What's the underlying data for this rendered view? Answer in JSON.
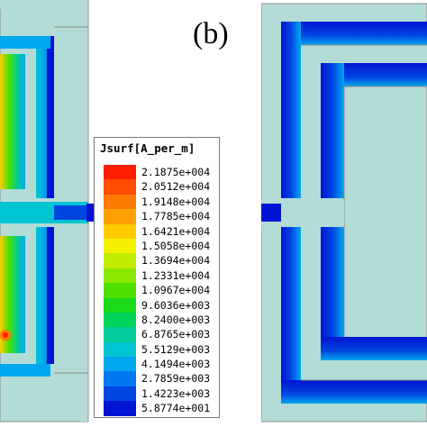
{
  "figure": {
    "panel_label": "(b)",
    "background_color": "#b3dcd6",
    "outline_color": "#8c8c8c"
  },
  "legend": {
    "title": "Jsurf[A_per_m]",
    "entries": [
      {
        "value": "2.1875e+004",
        "color": "#ff1e00"
      },
      {
        "value": "2.0512e+004",
        "color": "#ff4d00"
      },
      {
        "value": "1.9148e+004",
        "color": "#ff7a00"
      },
      {
        "value": "1.7785e+004",
        "color": "#ffa000"
      },
      {
        "value": "1.6421e+004",
        "color": "#ffcc00"
      },
      {
        "value": "1.5058e+004",
        "color": "#f4f000"
      },
      {
        "value": "1.3694e+004",
        "color": "#c0ec00"
      },
      {
        "value": "1.2331e+004",
        "color": "#8ce800"
      },
      {
        "value": "1.0967e+004",
        "color": "#4fe000"
      },
      {
        "value": "9.6036e+003",
        "color": "#1ada1a"
      },
      {
        "value": "8.2400e+003",
        "color": "#00d45a"
      },
      {
        "value": "6.8765e+003",
        "color": "#00cc99"
      },
      {
        "value": "5.5129e+003",
        "color": "#00c4d2"
      },
      {
        "value": "4.1494e+003",
        "color": "#00a8f0"
      },
      {
        "value": "2.7859e+003",
        "color": "#0078f0"
      },
      {
        "value": "1.4223e+003",
        "color": "#0046e0"
      },
      {
        "value": "5.8774e+001",
        "color": "#0014d4"
      }
    ]
  }
}
